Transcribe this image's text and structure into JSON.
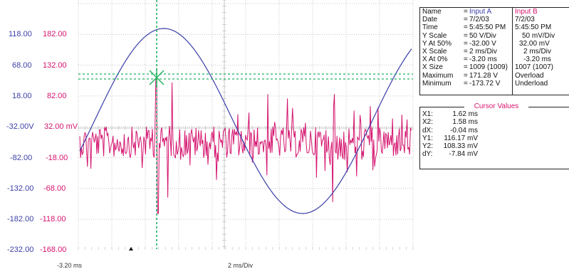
{
  "y_axis_a": [
    "118.00",
    "68.00",
    "18.00",
    "-32.00V",
    "-82.00",
    "-132.00",
    "-182.00",
    "-232.00"
  ],
  "y_axis_b": [
    "182.00",
    "132.00",
    "82.00",
    "32.00 mV",
    "-18.00",
    "-68.00",
    "-118.00",
    "-168.00"
  ],
  "colors": {
    "channel_a": "#3b3fa8",
    "channel_b": "#d4136e",
    "cursor": "#1fb060",
    "grid": "#b9b9b9"
  },
  "info": {
    "labels": [
      "Name",
      "Date",
      "Time",
      "Y Scale",
      "Y At 50%",
      "X Scale",
      "X At 0%",
      "X Size",
      "Maximum",
      "Minimum"
    ],
    "a_values": [
      "Input A",
      "7/2/03",
      "5:45:50 PM",
      "50   V/Div",
      "-32.00 V",
      "2   ms/Div",
      "-3.20 ms",
      "1009 (1009)",
      "171.28 V",
      "-173.72 V"
    ],
    "b_values": [
      "Input B",
      "7/2/03",
      "5:45:50 PM",
      "50   mV/Div",
      "32.00 mV",
      "2   ms/Div",
      "-3.20 ms",
      "1007 (1007)",
      "Overload",
      "Underload"
    ]
  },
  "cursor_values": {
    "title": "Cursor Values",
    "labels": [
      "X1:",
      "X2:",
      "dX:",
      "Y1:",
      "Y2:",
      "dY:"
    ],
    "values": [
      "1.62 ms",
      "1.58 ms",
      "-0.04 ms",
      "116.17 mV",
      "108.33 mV",
      "-7.84 mV"
    ]
  },
  "bottom_labels": [
    "-3.20 ms",
    "2 ms/Div"
  ]
}
